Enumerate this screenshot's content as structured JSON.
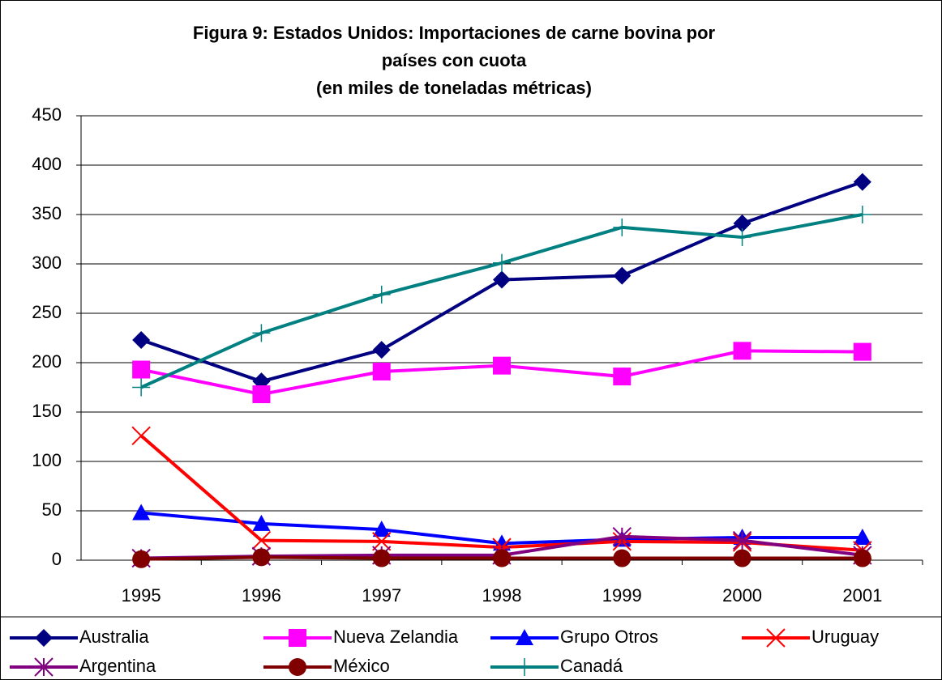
{
  "chart_data": {
    "type": "line",
    "title": [
      "Figura 9: Estados Unidos: Importaciones de carne bovina por",
      "países con cuota",
      "(en miles de toneladas métricas)"
    ],
    "categories": [
      "1995",
      "1996",
      "1997",
      "1998",
      "1999",
      "2000",
      "2001"
    ],
    "series": [
      {
        "name": "Australia",
        "color": "#000080",
        "marker": "diamond",
        "values": [
          223,
          181,
          213,
          284,
          288,
          341,
          383
        ]
      },
      {
        "name": "Nueva Zelandia",
        "color": "#ff00ff",
        "marker": "square",
        "values": [
          193,
          168,
          191,
          197,
          186,
          212,
          211
        ]
      },
      {
        "name": "Grupo Otros",
        "color": "#0000ff",
        "marker": "triangle",
        "values": [
          48,
          37,
          31,
          17,
          21,
          23,
          23
        ]
      },
      {
        "name": "Uruguay",
        "color": "#ff0000",
        "marker": "x",
        "values": [
          126,
          20,
          19,
          13,
          19,
          18,
          10
        ]
      },
      {
        "name": "Argentina",
        "color": "#800080",
        "marker": "star",
        "values": [
          2,
          4,
          5,
          5,
          24,
          20,
          5
        ]
      },
      {
        "name": "México",
        "color": "#800000",
        "marker": "circle",
        "values": [
          1,
          3,
          2,
          2,
          2,
          2,
          2
        ]
      },
      {
        "name": "Canadá",
        "color": "#008080",
        "marker": "plus",
        "values": [
          175,
          230,
          269,
          301,
          337,
          327,
          350
        ]
      }
    ],
    "ylim": [
      0,
      450
    ],
    "yticks": [
      0,
      50,
      100,
      150,
      200,
      250,
      300,
      350,
      400,
      450
    ],
    "grid": true,
    "legend": "bottom"
  }
}
